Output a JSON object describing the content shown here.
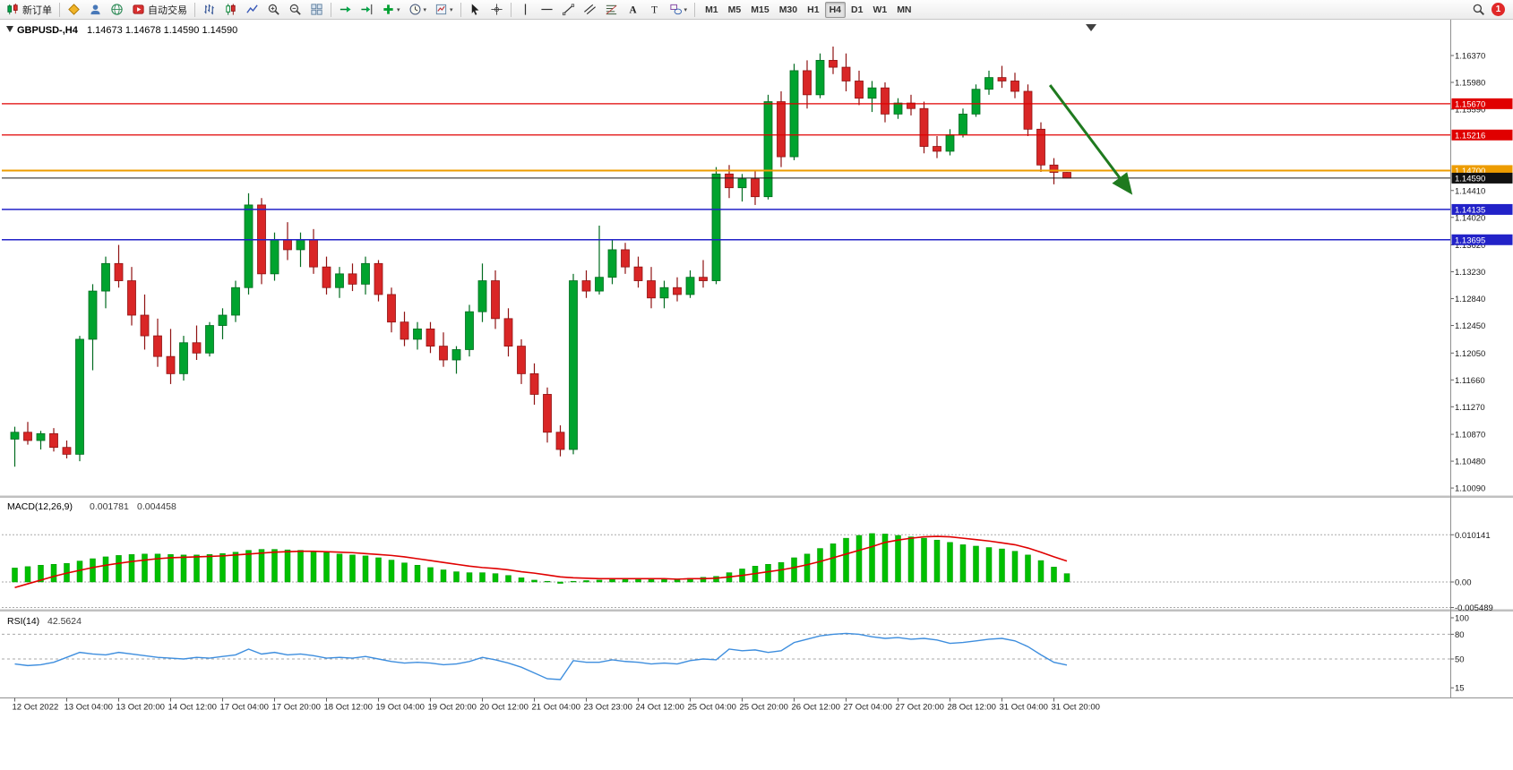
{
  "toolbar": {
    "buttons": [
      {
        "name": "new-order",
        "icon": "new-order",
        "label": "新订单"
      },
      {
        "sep": true
      },
      {
        "name": "mql5-community",
        "icon": "diamond"
      },
      {
        "name": "user-profile",
        "icon": "person"
      },
      {
        "name": "market",
        "icon": "globe"
      },
      {
        "name": "autotrading",
        "icon": "autotrade",
        "label": "自动交易"
      },
      {
        "sep": true
      },
      {
        "name": "chart-bars",
        "icon": "bars"
      },
      {
        "name": "chart-candles",
        "icon": "candles"
      },
      {
        "name": "chart-line",
        "icon": "line"
      },
      {
        "name": "zoom-in",
        "icon": "zoom-in"
      },
      {
        "name": "zoom-out",
        "icon": "zoom-out"
      },
      {
        "name": "tile-windows",
        "icon": "tile"
      },
      {
        "sep": true
      },
      {
        "name": "auto-scroll",
        "icon": "autoscroll"
      },
      {
        "name": "chart-shift",
        "icon": "chart-shift"
      },
      {
        "name": "indicators",
        "icon": "add-indicator",
        "dropdown": true
      },
      {
        "name": "periods",
        "icon": "clock",
        "dropdown": true
      },
      {
        "name": "templates",
        "icon": "template",
        "dropdown": true
      },
      {
        "sep": true
      },
      {
        "name": "cursor",
        "icon": "cursor"
      },
      {
        "name": "crosshair",
        "icon": "crosshair"
      },
      {
        "sep": true
      },
      {
        "name": "vertical-line",
        "icon": "vline"
      },
      {
        "name": "horizontal-line",
        "icon": "hline"
      },
      {
        "name": "trendline",
        "icon": "trendline"
      },
      {
        "name": "equidistant-channel",
        "icon": "channel"
      },
      {
        "name": "fibonacci",
        "icon": "fibonacci"
      },
      {
        "name": "text",
        "icon": "text-a"
      },
      {
        "name": "text-label",
        "icon": "label-t"
      },
      {
        "name": "arrows",
        "icon": "shapes",
        "dropdown": true
      },
      {
        "sep": true
      }
    ],
    "timeframes": [
      "M1",
      "M5",
      "M15",
      "M30",
      "H1",
      "H4",
      "D1",
      "W1",
      "MN"
    ],
    "active_timeframe": "H4",
    "notification_count": "1"
  },
  "chart_data": {
    "type": "candlestick",
    "title": "GBPUSD-,H4",
    "ohlc_text": "1.14673 1.14678 1.14590 1.14590",
    "ylim": [
      1.1009,
      1.1637
    ],
    "colors": {
      "up": "#00A32E",
      "up_stroke": "#006B1F",
      "down": "#D92626",
      "down_stroke": "#8F1212",
      "macd": "#00C000",
      "macd_signal": "#E00000",
      "rsi": "#3E8EDE"
    },
    "y_axis_labels": [
      "1.16370",
      "1.15980",
      "1.15590",
      "1.14410",
      "1.14020",
      "1.13620",
      "1.13230",
      "1.12840",
      "1.12450",
      "1.12050",
      "1.11660",
      "1.11270",
      "1.10870",
      "1.10480",
      "1.10090"
    ],
    "x_labels": [
      "12 Oct 2022",
      "13 Oct 04:00",
      "13 Oct 20:00",
      "14 Oct 12:00",
      "17 Oct 04:00",
      "17 Oct 20:00",
      "18 Oct 12:00",
      "19 Oct 04:00",
      "19 Oct 20:00",
      "20 Oct 12:00",
      "21 Oct 04:00",
      "23 Oct 23:00",
      "24 Oct 12:00",
      "25 Oct 04:00",
      "25 Oct 20:00",
      "26 Oct 12:00",
      "27 Oct 04:00",
      "27 Oct 20:00",
      "28 Oct 12:00",
      "31 Oct 04:00",
      "31 Oct 20:00"
    ],
    "candles": [
      [
        1.108,
        1.1098,
        1.104,
        1.109
      ],
      [
        1.109,
        1.1105,
        1.1072,
        1.1078
      ],
      [
        1.1078,
        1.1092,
        1.1065,
        1.1088
      ],
      [
        1.1088,
        1.1096,
        1.1062,
        1.1068
      ],
      [
        1.1068,
        1.1078,
        1.1052,
        1.1058
      ],
      [
        1.1058,
        1.123,
        1.1048,
        1.1225
      ],
      [
        1.1225,
        1.1305,
        1.118,
        1.1295
      ],
      [
        1.1295,
        1.1345,
        1.127,
        1.1335
      ],
      [
        1.1335,
        1.1362,
        1.13,
        1.131
      ],
      [
        1.131,
        1.133,
        1.1245,
        1.126
      ],
      [
        1.126,
        1.129,
        1.121,
        1.123
      ],
      [
        1.123,
        1.1255,
        1.1185,
        1.12
      ],
      [
        1.12,
        1.124,
        1.116,
        1.1175
      ],
      [
        1.1175,
        1.123,
        1.1165,
        1.122
      ],
      [
        1.122,
        1.1245,
        1.1195,
        1.1205
      ],
      [
        1.1205,
        1.125,
        1.12,
        1.1245
      ],
      [
        1.1245,
        1.127,
        1.1225,
        1.126
      ],
      [
        1.126,
        1.131,
        1.125,
        1.13
      ],
      [
        1.13,
        1.1437,
        1.129,
        1.142
      ],
      [
        1.142,
        1.143,
        1.1305,
        1.132
      ],
      [
        1.132,
        1.138,
        1.131,
        1.137
      ],
      [
        1.137,
        1.1395,
        1.134,
        1.1355
      ],
      [
        1.1355,
        1.138,
        1.133,
        1.137
      ],
      [
        1.137,
        1.1385,
        1.132,
        1.133
      ],
      [
        1.133,
        1.1345,
        1.129,
        1.13
      ],
      [
        1.13,
        1.133,
        1.1285,
        1.132
      ],
      [
        1.132,
        1.1335,
        1.1295,
        1.1305
      ],
      [
        1.1305,
        1.1345,
        1.129,
        1.1335
      ],
      [
        1.1335,
        1.134,
        1.128,
        1.129
      ],
      [
        1.129,
        1.13,
        1.1235,
        1.125
      ],
      [
        1.125,
        1.1265,
        1.1215,
        1.1225
      ],
      [
        1.1225,
        1.125,
        1.121,
        1.124
      ],
      [
        1.124,
        1.125,
        1.1205,
        1.1215
      ],
      [
        1.1215,
        1.1235,
        1.1185,
        1.1195
      ],
      [
        1.1195,
        1.1215,
        1.1175,
        1.121
      ],
      [
        1.121,
        1.1275,
        1.12,
        1.1265
      ],
      [
        1.1265,
        1.1335,
        1.125,
        1.131
      ],
      [
        1.131,
        1.1325,
        1.124,
        1.1255
      ],
      [
        1.1255,
        1.127,
        1.12,
        1.1215
      ],
      [
        1.1215,
        1.1225,
        1.116,
        1.1175
      ],
      [
        1.1175,
        1.119,
        1.113,
        1.1145
      ],
      [
        1.1145,
        1.1155,
        1.1075,
        1.109
      ],
      [
        1.109,
        1.11,
        1.1055,
        1.1065
      ],
      [
        1.1065,
        1.132,
        1.1058,
        1.131
      ],
      [
        1.131,
        1.1325,
        1.1285,
        1.1295
      ],
      [
        1.1295,
        1.139,
        1.129,
        1.1315
      ],
      [
        1.1315,
        1.137,
        1.1305,
        1.1355
      ],
      [
        1.1355,
        1.1365,
        1.132,
        1.133
      ],
      [
        1.133,
        1.1345,
        1.13,
        1.131
      ],
      [
        1.131,
        1.133,
        1.127,
        1.1285
      ],
      [
        1.1285,
        1.131,
        1.127,
        1.13
      ],
      [
        1.13,
        1.1315,
        1.128,
        1.129
      ],
      [
        1.129,
        1.1325,
        1.1285,
        1.1315
      ],
      [
        1.1315,
        1.134,
        1.13,
        1.131
      ],
      [
        1.131,
        1.1475,
        1.1305,
        1.1465
      ],
      [
        1.1465,
        1.1478,
        1.143,
        1.1445
      ],
      [
        1.1445,
        1.1465,
        1.1425,
        1.1458
      ],
      [
        1.1458,
        1.147,
        1.142,
        1.1432
      ],
      [
        1.1432,
        1.158,
        1.1428,
        1.157
      ],
      [
        1.157,
        1.1585,
        1.1475,
        1.149
      ],
      [
        1.149,
        1.1625,
        1.1485,
        1.1615
      ],
      [
        1.1615,
        1.163,
        1.156,
        1.158
      ],
      [
        1.158,
        1.164,
        1.1575,
        1.163
      ],
      [
        1.163,
        1.165,
        1.161,
        1.162
      ],
      [
        1.162,
        1.164,
        1.1585,
        1.16
      ],
      [
        1.16,
        1.1615,
        1.1565,
        1.1575
      ],
      [
        1.1575,
        1.16,
        1.1555,
        1.159
      ],
      [
        1.159,
        1.1598,
        1.154,
        1.1552
      ],
      [
        1.1552,
        1.1575,
        1.1545,
        1.1568
      ],
      [
        1.1568,
        1.158,
        1.155,
        1.156
      ],
      [
        1.156,
        1.157,
        1.1495,
        1.1505
      ],
      [
        1.1505,
        1.152,
        1.1488,
        1.1498
      ],
      [
        1.1498,
        1.153,
        1.1492,
        1.1522
      ],
      [
        1.1522,
        1.156,
        1.1518,
        1.1552
      ],
      [
        1.1552,
        1.1595,
        1.1548,
        1.1588
      ],
      [
        1.1588,
        1.1615,
        1.158,
        1.1605
      ],
      [
        1.1605,
        1.1622,
        1.159,
        1.16
      ],
      [
        1.16,
        1.1612,
        1.1575,
        1.1585
      ],
      [
        1.1585,
        1.1595,
        1.152,
        1.153
      ],
      [
        1.153,
        1.154,
        1.1468,
        1.1478
      ],
      [
        1.1478,
        1.1488,
        1.145,
        1.14673
      ],
      [
        1.14673,
        1.14678,
        1.1459,
        1.1459
      ]
    ],
    "levels": [
      {
        "price": 1.1567,
        "label": "1.15670",
        "color": "#E00000",
        "width": 1.2
      },
      {
        "price": 1.15216,
        "label": "1.15216",
        "color": "#E00000",
        "width": 1.2
      },
      {
        "price": 1.147,
        "label": "1.14700",
        "color": "#ED9C00",
        "width": 2
      },
      {
        "price": 1.1459,
        "label": "1.14590",
        "color": "#1A1A1A",
        "width": 1,
        "current": true
      },
      {
        "price": 1.14135,
        "label": "1.14135",
        "color": "#2222C8",
        "width": 1.5
      },
      {
        "price": 1.13695,
        "label": "1.13695",
        "color": "#2222C8",
        "width": 1.5
      }
    ],
    "trend_arrow": {
      "color": "#1F7A1F",
      "start": {
        "index": 79.7,
        "price": 1.1594
      },
      "end": {
        "index": 85.8,
        "price": 1.1441
      }
    },
    "macd": {
      "label": "MACD(12,26,9)",
      "value": "0.001781",
      "signal": "0.004458",
      "axis": [
        {
          "v": 0.010141,
          "t": "0.010141"
        },
        {
          "v": 0,
          "t": "0.00"
        },
        {
          "v": -0.005489,
          "t": "-0.005489"
        }
      ],
      "histogram": [
        0.003,
        0.0033,
        0.0036,
        0.0038,
        0.004,
        0.0045,
        0.005,
        0.0054,
        0.0057,
        0.0059,
        0.006,
        0.006,
        0.0059,
        0.0058,
        0.0058,
        0.0059,
        0.0061,
        0.0064,
        0.0068,
        0.007,
        0.007,
        0.0069,
        0.0068,
        0.0066,
        0.0063,
        0.006,
        0.0058,
        0.0056,
        0.0052,
        0.0047,
        0.0041,
        0.0036,
        0.0031,
        0.0026,
        0.0022,
        0.002,
        0.002,
        0.0018,
        0.0014,
        0.0009,
        0.0004,
        0.0,
        -0.0003,
        0.0001,
        0.0003,
        0.0004,
        0.0006,
        0.0007,
        0.0007,
        0.0006,
        0.0006,
        0.0006,
        0.0008,
        0.001,
        0.0012,
        0.002,
        0.0028,
        0.0034,
        0.0038,
        0.0042,
        0.0052,
        0.006,
        0.0072,
        0.0082,
        0.0094,
        0.01,
        0.0104,
        0.0103,
        0.01,
        0.0097,
        0.0094,
        0.009,
        0.0085,
        0.008,
        0.0077,
        0.0074,
        0.0071,
        0.0066,
        0.0058,
        0.0046,
        0.0032,
        0.0018
      ],
      "signal_line": [
        -0.0012,
        -0.0004,
        0.0004,
        0.0012,
        0.0019,
        0.0025,
        0.0031,
        0.0036,
        0.004,
        0.0044,
        0.0047,
        0.005,
        0.0052,
        0.0053,
        0.0054,
        0.0055,
        0.0056,
        0.0058,
        0.006,
        0.0062,
        0.0064,
        0.0065,
        0.0066,
        0.0066,
        0.0065,
        0.0064,
        0.0063,
        0.0061,
        0.0059,
        0.0057,
        0.0054,
        0.005,
        0.0046,
        0.0042,
        0.0038,
        0.0034,
        0.0031,
        0.0029,
        0.0026,
        0.0022,
        0.0019,
        0.0015,
        0.0011,
        0.0009,
        0.0008,
        0.0007,
        0.0007,
        0.0007,
        0.0007,
        0.0007,
        0.0007,
        0.0006,
        0.0007,
        0.0007,
        0.0008,
        0.0011,
        0.0014,
        0.0018,
        0.0022,
        0.0026,
        0.0031,
        0.0037,
        0.0044,
        0.0052,
        0.006,
        0.0068,
        0.0076,
        0.0085,
        0.009,
        0.0094,
        0.0097,
        0.0098,
        0.0097,
        0.0094,
        0.0091,
        0.0088,
        0.0084,
        0.008,
        0.0073,
        0.0064,
        0.0054,
        0.0045
      ]
    },
    "rsi": {
      "label": "RSI(14)",
      "value": "42.5624",
      "axis": [
        {
          "v": 100,
          "t": "100"
        },
        {
          "v": 80,
          "t": "80"
        },
        {
          "v": 50,
          "t": "50"
        },
        {
          "v": 15,
          "t": "15"
        }
      ],
      "levels": [
        80,
        50
      ],
      "values": [
        44,
        42,
        43,
        46,
        52,
        58,
        56,
        55,
        58,
        56,
        54,
        52,
        51,
        50,
        52,
        51,
        53,
        55,
        62,
        56,
        58,
        55,
        56,
        54,
        51,
        52,
        51,
        53,
        50,
        47,
        45,
        46,
        45,
        43,
        44,
        47,
        52,
        49,
        45,
        40,
        33,
        26,
        25,
        48,
        46,
        46,
        49,
        47,
        46,
        44,
        45,
        44,
        48,
        50,
        49,
        62,
        60,
        61,
        58,
        60,
        70,
        74,
        78,
        80,
        81,
        80,
        77,
        75,
        76,
        74,
        75,
        73,
        69,
        70,
        72,
        74,
        75,
        72,
        65,
        55,
        46,
        42.6
      ]
    }
  }
}
